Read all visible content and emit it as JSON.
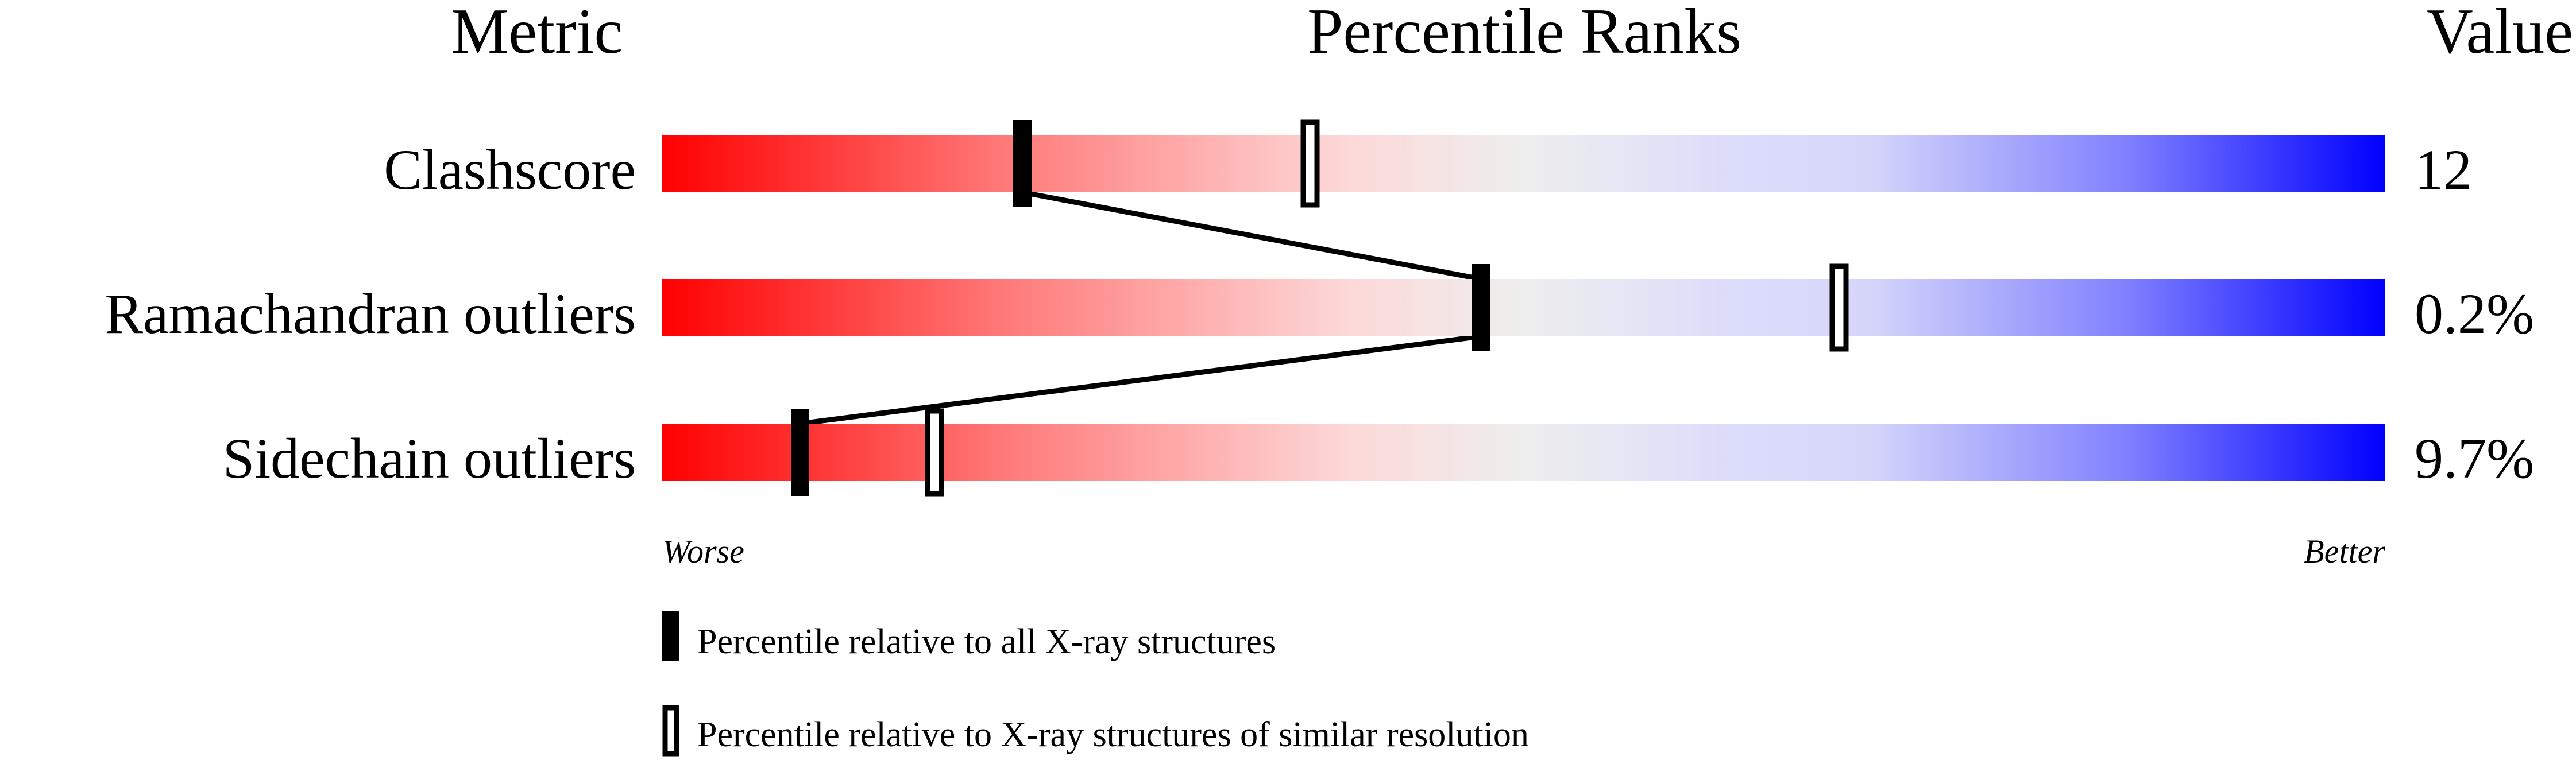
{
  "chart_data": {
    "type": "percentile-ranks",
    "headers": {
      "metric": "Metric",
      "title": "Percentile Ranks",
      "value": "Value"
    },
    "xlim": [
      0,
      100
    ],
    "axis": {
      "left": "Worse",
      "right": "Better"
    },
    "rows": [
      {
        "metric": "Clashscore",
        "value": "12",
        "percentile_all": 20.9,
        "percentile_similar": 37.6
      },
      {
        "metric": "Ramachandran outliers",
        "value": "0.2%",
        "percentile_all": 47.5,
        "percentile_similar": 68.3
      },
      {
        "metric": "Sidechain outliers",
        "value": "9.7%",
        "percentile_all": 8.0,
        "percentile_similar": 15.8
      }
    ],
    "legend": {
      "all": "Percentile relative to all X-ray structures",
      "similar": "Percentile relative to X-ray structures of similar resolution"
    },
    "colors": {
      "worse": "#ff0000",
      "middle": "#eeeeee",
      "better": "#0000ff",
      "marker": "#000000"
    }
  }
}
